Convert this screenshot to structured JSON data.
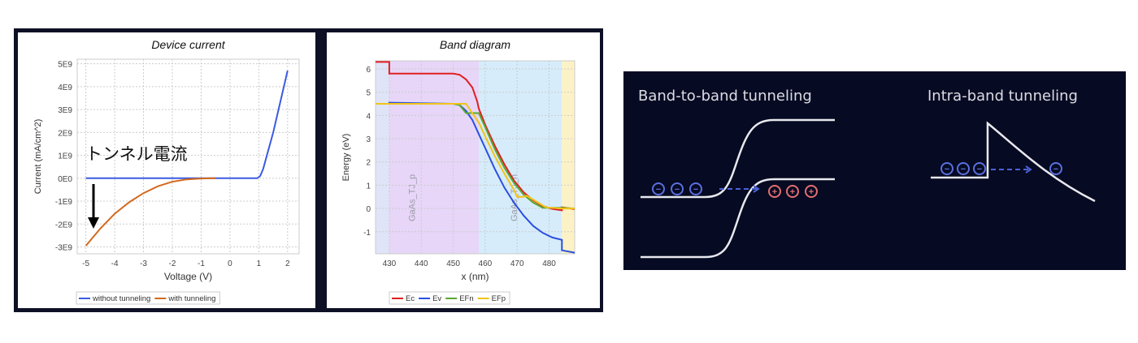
{
  "chart_data": [
    {
      "type": "line",
      "title": "Device current",
      "xlabel": "Voltage (V)",
      "ylabel": "Current (mA/cm^2)",
      "xlim": [
        -5.3,
        2.4
      ],
      "ylim": [
        -3300000000.0,
        5200000000.0
      ],
      "xticks": [
        -5,
        -4,
        -3,
        -2,
        -1,
        0,
        1,
        2
      ],
      "xtick_labels": [
        "-5",
        "-4",
        "-3",
        "-2",
        "-1",
        "0",
        "1",
        "2"
      ],
      "yticks": [
        5000000000.0,
        4000000000.0,
        3000000000.0,
        2000000000.0,
        1000000000.0,
        0,
        -1000000000.0,
        -2000000000.0,
        -3000000000.0
      ],
      "ytick_labels": [
        "5E9",
        "4E9",
        "3E9",
        "2E9",
        "1E9",
        "0E0",
        "-1E9",
        "-2E9",
        "-3E9"
      ],
      "grid": true,
      "legend_position": "bottom",
      "annotation": "トンネル電流",
      "series": [
        {
          "name": "without tunneling",
          "color": "#3b5be0",
          "x": [
            -5,
            -4,
            -3,
            -2,
            -1,
            0,
            0.95,
            1.05,
            1.15,
            1.5,
            2
          ],
          "y": [
            0,
            0,
            0,
            0,
            0,
            0,
            0,
            100000000.0,
            400000000.0,
            2000000000.0,
            4700000000.0
          ]
        },
        {
          "name": "with tunneling",
          "color": "#d2691e",
          "x": [
            -5,
            -4.5,
            -4,
            -3.5,
            -3,
            -2.5,
            -2,
            -1.5,
            -1,
            -0.5
          ],
          "y": [
            -2950000000.0,
            -2200000000.0,
            -1550000000.0,
            -1050000000.0,
            -650000000.0,
            -350000000.0,
            -150000000.0,
            -50000000.0,
            -10000000.0,
            0
          ]
        }
      ]
    },
    {
      "type": "line",
      "title": "Band diagram",
      "xlabel": "x (nm)",
      "ylabel": "Energy (eV)",
      "xlim": [
        425.7,
        488
      ],
      "ylim": [
        -1.95,
        6.35
      ],
      "xticks": [
        430,
        440,
        450,
        460,
        470,
        480
      ],
      "xtick_labels": [
        "430",
        "440",
        "450",
        "460",
        "470",
        "480"
      ],
      "yticks": [
        6,
        5,
        4,
        3,
        2,
        1,
        0,
        -1
      ],
      "ytick_labels": [
        "6",
        "5",
        "4",
        "3",
        "2",
        "1",
        "0",
        "-1"
      ],
      "grid": true,
      "legend_position": "bottom",
      "regions": [
        {
          "from": 425.7,
          "to": 430,
          "color": "#dfe4f8",
          "label": ""
        },
        {
          "from": 430,
          "to": 458,
          "color": "#e7d6f8",
          "label": "GaAs_TJ_p"
        },
        {
          "from": 458,
          "to": 484,
          "color": "#d6ecfa",
          "label": "GaAs_TJ_n"
        },
        {
          "from": 484,
          "to": 488,
          "color": "#fcf2c6",
          "label": ""
        }
      ],
      "series": [
        {
          "name": "Ec",
          "color": "#e02020",
          "x": [
            425.7,
            430,
            430,
            450,
            452,
            454,
            456,
            457.5,
            458,
            460,
            463,
            466,
            469,
            472,
            475,
            478,
            481,
            484,
            484,
            488
          ],
          "y": [
            6.3,
            6.3,
            5.8,
            5.8,
            5.75,
            5.55,
            5.2,
            4.6,
            4.3,
            3.6,
            2.7,
            1.9,
            1.2,
            0.7,
            0.35,
            0.1,
            -0.02,
            -0.08,
            0.05,
            -0.03
          ]
        },
        {
          "name": "Ev",
          "color": "#2c4fe0",
          "x": [
            425.7,
            430,
            430,
            450,
            452,
            454,
            456,
            458,
            460,
            463,
            466,
            469,
            472,
            475,
            478,
            481,
            484,
            484,
            488
          ],
          "y": [
            4.5,
            4.5,
            4.55,
            4.5,
            4.45,
            4.2,
            3.8,
            3.2,
            2.6,
            1.7,
            0.9,
            0.25,
            -0.3,
            -0.75,
            -1.05,
            -1.25,
            -1.35,
            -1.8,
            -1.9
          ]
        },
        {
          "name": "EFn",
          "color": "#5aa832",
          "x": [
            425.7,
            450,
            452,
            454,
            455,
            458,
            460,
            463,
            466,
            469,
            472,
            475,
            478,
            484,
            488
          ],
          "y": [
            4.5,
            4.5,
            4.45,
            4.1,
            4.1,
            4.1,
            3.5,
            2.55,
            1.75,
            1.1,
            0.6,
            0.25,
            0.03,
            0.03,
            0.0
          ]
        },
        {
          "name": "EFp",
          "color": "#f0c419",
          "x": [
            425.7,
            452,
            454,
            455,
            458,
            460,
            463,
            466,
            469,
            470,
            472,
            473,
            476,
            479,
            484,
            488
          ],
          "y": [
            4.5,
            4.5,
            4.5,
            4.3,
            3.7,
            3.1,
            2.25,
            1.5,
            0.8,
            0.5,
            0.5,
            0.55,
            0.3,
            0.05,
            0.0,
            0.0
          ]
        }
      ]
    }
  ],
  "diagrams": {
    "band_to_band_title": "Band-to-band tunneling",
    "intra_band_title": "Intra-band tunneling",
    "electron_symbol": "−",
    "hole_symbol": "+"
  }
}
